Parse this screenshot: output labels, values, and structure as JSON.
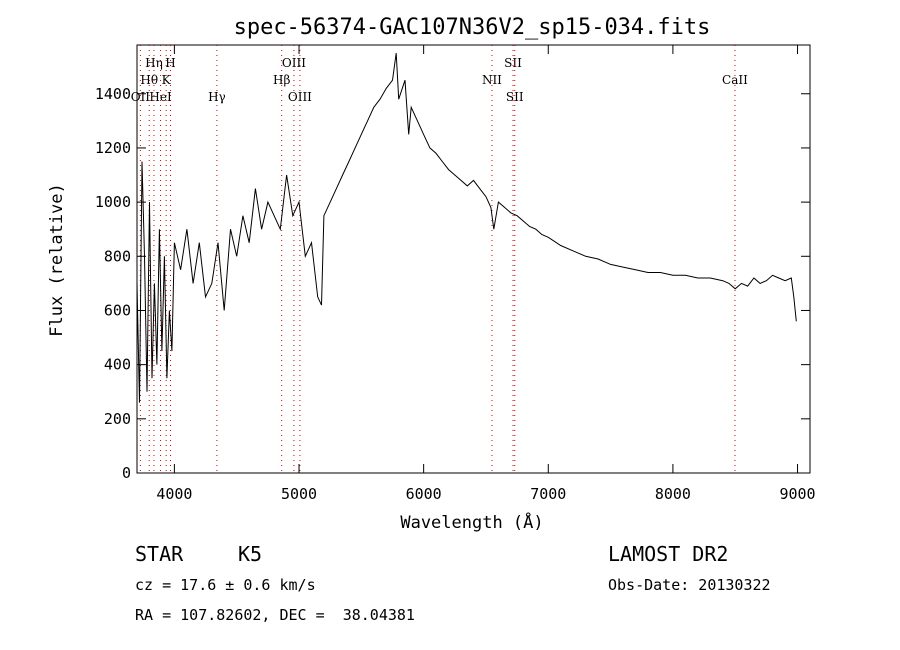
{
  "chart_data": {
    "type": "line",
    "title": "spec-56374-GAC107N36V2_sp15-034.fits",
    "xlabel": "Wavelength (Å)",
    "ylabel": "Flux (relative)",
    "xlim": [
      3700,
      9100
    ],
    "ylim": [
      0,
      1580
    ],
    "xticks": [
      4000,
      5000,
      6000,
      7000,
      8000,
      9000
    ],
    "yticks": [
      0,
      200,
      400,
      600,
      800,
      1000,
      1200,
      1400
    ],
    "grid": false,
    "line_color": "#000000",
    "marker_color": "#cc0000",
    "series": [
      {
        "x": [
          3700,
          3720,
          3740,
          3760,
          3780,
          3800,
          3820,
          3840,
          3860,
          3880,
          3900,
          3920,
          3940,
          3960,
          3980,
          4000,
          4050,
          4100,
          4150,
          4200,
          4250,
          4300,
          4350,
          4400,
          4450,
          4500,
          4550,
          4600,
          4650,
          4700,
          4750,
          4800,
          4850,
          4900,
          4950,
          5000,
          5050,
          5100,
          5150,
          5180,
          5200,
          5250,
          5300,
          5350,
          5400,
          5450,
          5500,
          5550,
          5600,
          5650,
          5700,
          5750,
          5780,
          5800,
          5850,
          5880,
          5900,
          5950,
          6000,
          6050,
          6100,
          6150,
          6200,
          6250,
          6300,
          6350,
          6400,
          6450,
          6500,
          6540,
          6563,
          6600,
          6650,
          6700,
          6750,
          6800,
          6850,
          6900,
          6950,
          7000,
          7100,
          7200,
          7300,
          7400,
          7500,
          7600,
          7700,
          7800,
          7900,
          8000,
          8100,
          8200,
          8300,
          8400,
          8450,
          8500,
          8550,
          8600,
          8650,
          8700,
          8750,
          8800,
          8850,
          8900,
          8950,
          8970,
          8990
        ],
        "y": [
          700,
          260,
          1150,
          800,
          300,
          1000,
          350,
          700,
          400,
          900,
          450,
          800,
          350,
          600,
          450,
          850,
          750,
          900,
          700,
          850,
          650,
          700,
          850,
          600,
          900,
          800,
          950,
          850,
          1050,
          900,
          1000,
          950,
          900,
          1100,
          950,
          1000,
          800,
          850,
          650,
          620,
          950,
          1000,
          1050,
          1100,
          1150,
          1200,
          1250,
          1300,
          1350,
          1380,
          1420,
          1450,
          1550,
          1380,
          1450,
          1250,
          1350,
          1300,
          1250,
          1200,
          1180,
          1150,
          1120,
          1100,
          1080,
          1060,
          1080,
          1050,
          1020,
          980,
          900,
          1000,
          980,
          960,
          950,
          930,
          910,
          900,
          880,
          870,
          840,
          820,
          800,
          790,
          770,
          760,
          750,
          740,
          740,
          730,
          730,
          720,
          720,
          710,
          700,
          680,
          700,
          690,
          720,
          700,
          710,
          730,
          720,
          710,
          720,
          650,
          560
        ]
      }
    ],
    "line_markers": [
      {
        "label": "OII",
        "x": 3727,
        "row": 3
      },
      {
        "label": "Hθ",
        "x": 3798,
        "row": 2
      },
      {
        "label": "Hη",
        "x": 3836,
        "row": 1
      },
      {
        "label": "HeI",
        "x": 3889,
        "row": 3
      },
      {
        "label": "K",
        "x": 3934,
        "row": 2
      },
      {
        "label": "H",
        "x": 3969,
        "row": 1
      },
      {
        "label": "Hγ",
        "x": 4341,
        "row": 3
      },
      {
        "label": "Hβ",
        "x": 4861,
        "row": 2
      },
      {
        "label": "OIII",
        "x": 4959,
        "row": 1
      },
      {
        "label": "OIII",
        "x": 5007,
        "row": 3
      },
      {
        "label": "NII",
        "x": 6548,
        "row": 2
      },
      {
        "label": "SII",
        "x": 6717,
        "row": 1
      },
      {
        "label": "SII",
        "x": 6731,
        "row": 3
      },
      {
        "label": "CaII",
        "x": 8498,
        "row": 2
      }
    ]
  },
  "footer": {
    "class_label": "STAR",
    "subclass": "K5",
    "survey": "LAMOST DR2",
    "cz": "cz = 17.6 ± 0.6 km/s",
    "obs_date": "Obs-Date: 20130322",
    "coords": "RA = 107.82602, DEC =  38.04381"
  }
}
